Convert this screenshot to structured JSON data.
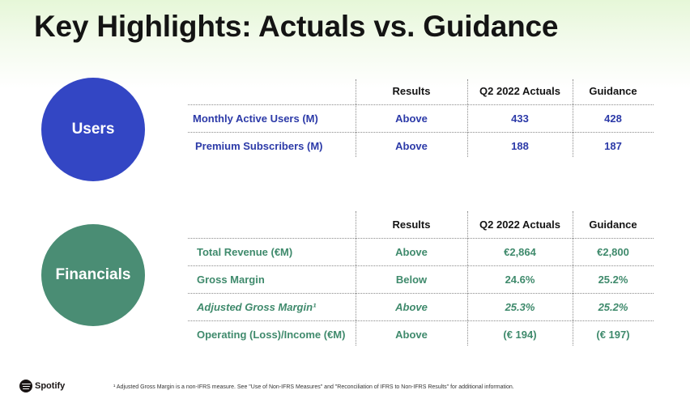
{
  "slide": {
    "title": "Key Highlights: Actuals vs. Guidance"
  },
  "users": {
    "circle_label": "Users",
    "circle_color": "#3346c4",
    "headers": [
      "Results",
      "Q2 2022 Actuals",
      "Guidance"
    ],
    "rows": [
      {
        "label": "Monthly Active Users (M)",
        "result": "Above",
        "actual": "433",
        "guidance": "428"
      },
      {
        "label": "Premium Subscribers (M)",
        "result": "Above",
        "actual": "188",
        "guidance": "187"
      }
    ]
  },
  "financials": {
    "circle_label": "Financials",
    "circle_color": "#4a8d74",
    "headers": [
      "Results",
      "Q2 2022 Actuals",
      "Guidance"
    ],
    "rows": [
      {
        "label": "Total Revenue (€M)",
        "result": "Above",
        "actual": "€2,864",
        "guidance": "€2,800"
      },
      {
        "label": "Gross Margin",
        "result": "Below",
        "actual": "24.6%",
        "guidance": "25.2%"
      },
      {
        "label": "Adjusted Gross Margin¹",
        "result": "Above",
        "actual": "25.3%",
        "guidance": "25.2%"
      },
      {
        "label": "Operating (Loss)/Income (€M)",
        "result": "Above",
        "actual": "(€ 194)",
        "guidance": "(€ 197)"
      }
    ]
  },
  "footer": {
    "logo_text": "Spotify",
    "footnote": "¹ Adjusted Gross Margin is a non-IFRS measure. See \"Use of Non-IFRS Measures\" and \"Reconciliation of IFRS to Non-IFRS Results\" for additional information."
  }
}
